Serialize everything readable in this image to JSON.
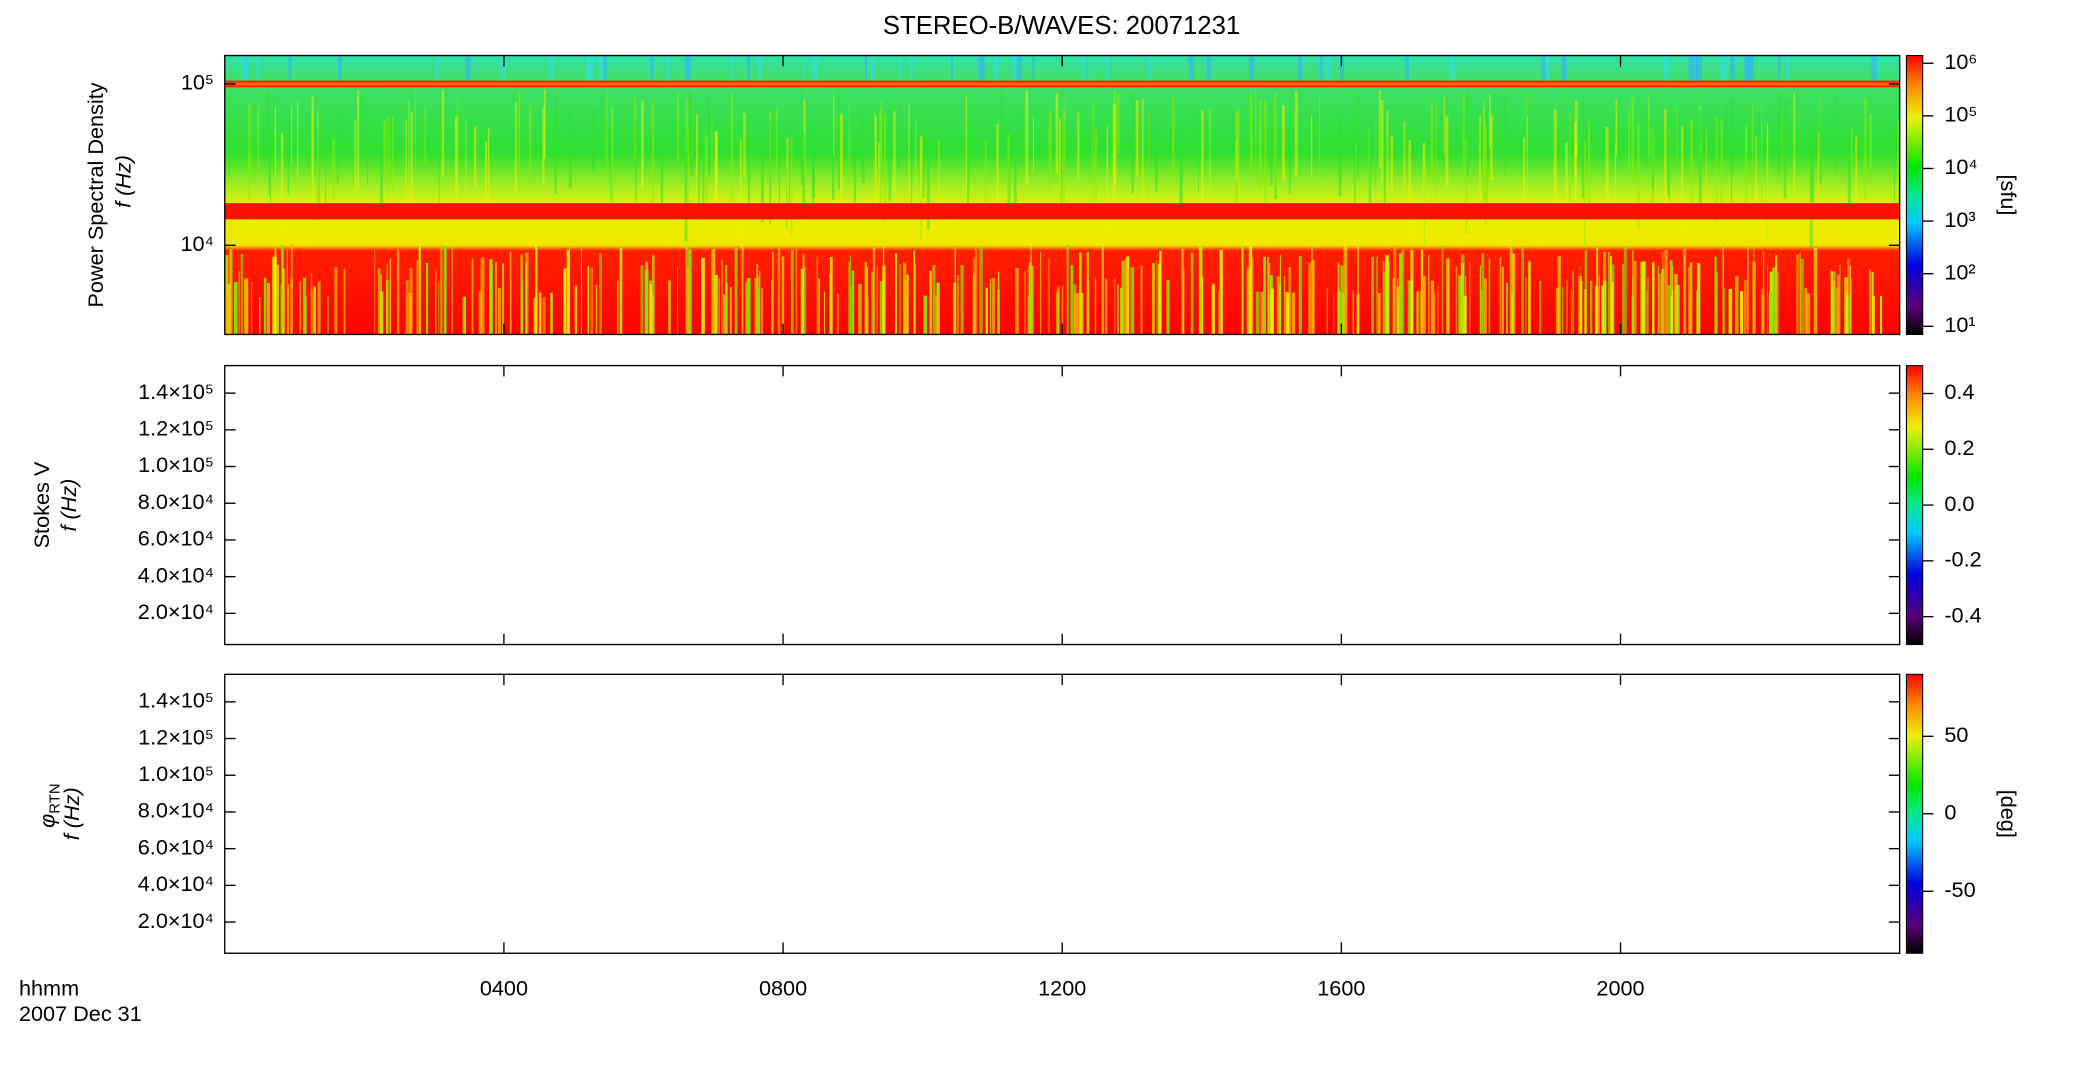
{
  "title": "STEREO-B/WAVES: 20071231",
  "x_axis": {
    "label": "hhmm",
    "date": "2007 Dec 31",
    "xlim": [
      0,
      24
    ],
    "xticks": [
      {
        "value": 4,
        "label": "0400"
      },
      {
        "value": 8,
        "label": "0800"
      },
      {
        "value": 12,
        "label": "1200"
      },
      {
        "value": 16,
        "label": "1600"
      },
      {
        "value": 20,
        "label": "2000"
      }
    ]
  },
  "chart_data": [
    {
      "type": "heatmap",
      "ylabel": "Power Spectral Density",
      "ylabel2": "f (Hz)",
      "log_y": true,
      "ylim": [
        2800,
        150000
      ],
      "yticks": [
        {
          "value": 10000,
          "label": "10⁴"
        },
        {
          "value": 100000,
          "label": "10⁵"
        }
      ],
      "colormap": "rainbow",
      "log_c": true,
      "clim": [
        7,
        1400000
      ],
      "cticks": [
        {
          "value": 10,
          "label": "10¹"
        },
        {
          "value": 100,
          "label": "10²"
        },
        {
          "value": 1000,
          "label": "10³"
        },
        {
          "value": 10000,
          "label": "10⁴"
        },
        {
          "value": 100000,
          "label": "10⁵"
        },
        {
          "value": 1000000,
          "label": "10⁶"
        }
      ],
      "clabel": "[sfu]"
    },
    {
      "type": "heatmap",
      "ylabel": "Stokes V",
      "ylabel2": "f (Hz)",
      "log_y": false,
      "ylim": [
        3000,
        155000
      ],
      "yticks": [
        {
          "value": 20000,
          "label": "2.0×10⁴"
        },
        {
          "value": 40000,
          "label": "4.0×10⁴"
        },
        {
          "value": 60000,
          "label": "6.0×10⁴"
        },
        {
          "value": 80000,
          "label": "8.0×10⁴"
        },
        {
          "value": 100000,
          "label": "1.0×10⁵"
        },
        {
          "value": 120000,
          "label": "1.2×10⁵"
        },
        {
          "value": 140000,
          "label": "1.4×10⁵"
        }
      ],
      "colormap": "rainbow",
      "log_c": false,
      "clim": [
        -0.5,
        0.5
      ],
      "cticks": [
        -0.4,
        -0.2,
        {
          "value": 0,
          "label": "0.0"
        },
        0.2,
        0.4
      ]
    },
    {
      "type": "heatmap",
      "ylabel": "φ",
      "ylabel_sub": "RTN",
      "ylabel2": "f (Hz)",
      "log_y": false,
      "ylim": [
        3000,
        155000
      ],
      "yticks": [
        {
          "value": 20000,
          "label": "2.0×10⁴"
        },
        {
          "value": 40000,
          "label": "4.0×10⁴"
        },
        {
          "value": 60000,
          "label": "6.0×10⁴"
        },
        {
          "value": 80000,
          "label": "8.0×10⁴"
        },
        {
          "value": 100000,
          "label": "1.0×10⁵"
        },
        {
          "value": 120000,
          "label": "1.2×10⁵"
        },
        {
          "value": 140000,
          "label": "1.4×10⁵"
        }
      ],
      "colormap": "rainbow",
      "log_c": false,
      "clim": [
        -90,
        90
      ],
      "cticks": [
        -50,
        0,
        50
      ],
      "clabel": "[deg]"
    }
  ]
}
